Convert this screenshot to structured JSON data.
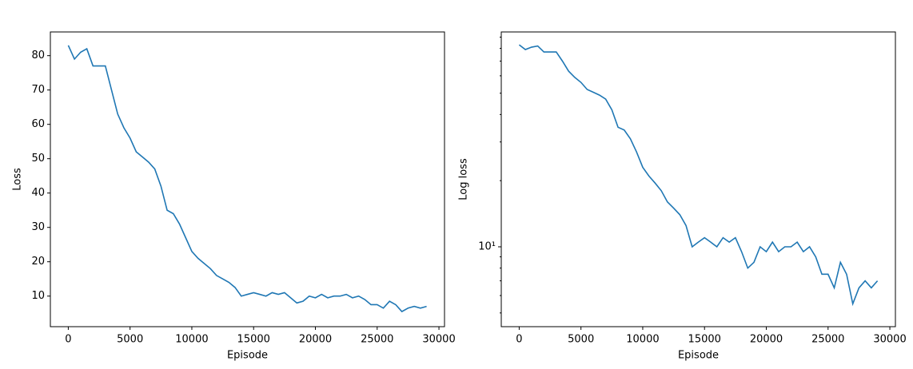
{
  "chart_data": [
    {
      "type": "line",
      "xlabel": "Episode",
      "ylabel": "Loss",
      "color": "#1f77b4",
      "yscale": "linear",
      "x": [
        0,
        500,
        1000,
        1500,
        2000,
        2500,
        3000,
        3500,
        4000,
        4500,
        5000,
        5500,
        6000,
        6500,
        7000,
        7500,
        8000,
        8500,
        9000,
        9500,
        10000,
        10500,
        11000,
        11500,
        12000,
        12500,
        13000,
        13500,
        14000,
        14500,
        15000,
        15500,
        16000,
        16500,
        17000,
        17500,
        18000,
        18500,
        19000,
        19500,
        20000,
        20500,
        21000,
        21500,
        22000,
        22500,
        23000,
        23500,
        24000,
        24500,
        25000,
        25500,
        26000,
        26500,
        27000,
        27500,
        28000,
        28500,
        29000
      ],
      "values": [
        83,
        79,
        81,
        82,
        77,
        77,
        77,
        70,
        63,
        59,
        56,
        52,
        50.5,
        49,
        47,
        42,
        35,
        34,
        31,
        27,
        23,
        21,
        19.5,
        18,
        16,
        15,
        14,
        12.5,
        10,
        10.5,
        11,
        10.5,
        10,
        11,
        10.5,
        11,
        9.5,
        8,
        8.5,
        10,
        9.5,
        10.5,
        9.5,
        10,
        10,
        10.5,
        9.5,
        10,
        9,
        7.5,
        7.5,
        6.5,
        8.5,
        7.5,
        5.5,
        6.5,
        7,
        6.5,
        7
      ],
      "xlim": [
        -1450,
        30450
      ],
      "xticks": [
        0,
        5000,
        10000,
        15000,
        20000,
        25000,
        30000
      ],
      "ylim": [
        1.1,
        86.9
      ],
      "yticks": [
        10,
        20,
        30,
        40,
        50,
        60,
        70,
        80
      ]
    },
    {
      "type": "line",
      "xlabel": "Episode",
      "ylabel": "Log loss",
      "color": "#1f77b4",
      "yscale": "log",
      "x": [
        0,
        500,
        1000,
        1500,
        2000,
        2500,
        3000,
        3500,
        4000,
        4500,
        5000,
        5500,
        6000,
        6500,
        7000,
        7500,
        8000,
        8500,
        9000,
        9500,
        10000,
        10500,
        11000,
        11500,
        12000,
        12500,
        13000,
        13500,
        14000,
        14500,
        15000,
        15500,
        16000,
        16500,
        17000,
        17500,
        18000,
        18500,
        19000,
        19500,
        20000,
        20500,
        21000,
        21500,
        22000,
        22500,
        23000,
        23500,
        24000,
        24500,
        25000,
        25500,
        26000,
        26500,
        27000,
        27500,
        28000,
        28500,
        29000
      ],
      "values": [
        83,
        79,
        81,
        82,
        77,
        77,
        77,
        70,
        63,
        59,
        56,
        52,
        50.5,
        49,
        47,
        42,
        35,
        34,
        31,
        27,
        23,
        21,
        19.5,
        18,
        16,
        15,
        14,
        12.5,
        10,
        10.5,
        11,
        10.5,
        10,
        11,
        10.5,
        11,
        9.5,
        8,
        8.5,
        10,
        9.5,
        10.5,
        9.5,
        10,
        10,
        10.5,
        9.5,
        10,
        9,
        7.5,
        7.5,
        6.5,
        8.5,
        7.5,
        5.5,
        6.5,
        7,
        6.5,
        7
      ],
      "xlim": [
        -1450,
        30450
      ],
      "xticks": [
        0,
        5000,
        10000,
        15000,
        20000,
        25000,
        30000
      ],
      "ylim": [
        4.33,
        95
      ],
      "yticks": [
        {
          "value": 10,
          "label": "10¹"
        }
      ],
      "yminorticks": [
        5,
        6,
        7,
        8,
        9,
        20,
        30,
        40,
        50,
        60,
        70,
        80,
        90
      ]
    }
  ]
}
